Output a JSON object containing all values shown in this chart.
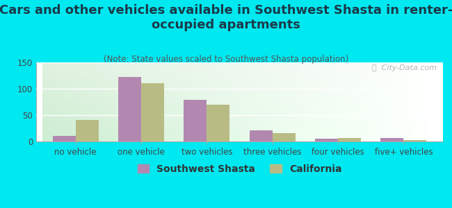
{
  "title": "Cars and other vehicles available in Southwest Shasta in renter-\noccupied apartments",
  "subtitle": "(Note: State values scaled to Southwest Shasta population)",
  "categories": [
    "no vehicle",
    "one vehicle",
    "two vehicles",
    "three vehicles",
    "four vehicles",
    "five+ vehicles"
  ],
  "southwest_shasta": [
    10,
    122,
    79,
    21,
    5,
    7
  ],
  "california": [
    41,
    110,
    70,
    16,
    6,
    2
  ],
  "sw_color": "#b388b0",
  "ca_color": "#b8bc84",
  "background_outer": "#00e8f0",
  "ylim": [
    0,
    150
  ],
  "yticks": [
    0,
    50,
    100,
    150
  ],
  "bar_width": 0.35,
  "legend_labels": [
    "Southwest Shasta",
    "California"
  ],
  "watermark": "ⓘ  City-Data.com",
  "title_fontsize": 13,
  "subtitle_fontsize": 8.5,
  "tick_fontsize": 8.5,
  "legend_fontsize": 10
}
